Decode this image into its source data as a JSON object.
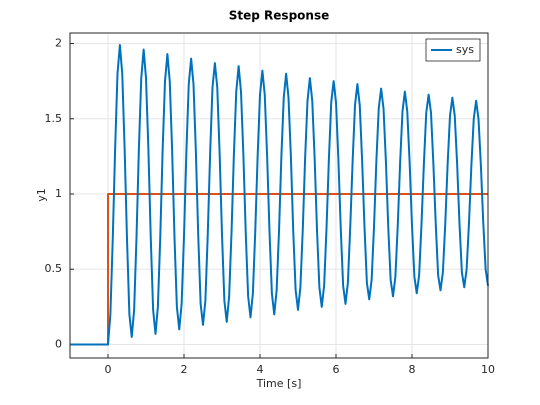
{
  "chart_data": {
    "type": "line",
    "title": "Step Response",
    "xlabel": "Time [s]",
    "ylabel": "y1",
    "xlim": [
      -1,
      10
    ],
    "xticks": [
      0,
      2,
      4,
      6,
      8,
      10
    ],
    "ylim": [
      -0.09,
      2.07
    ],
    "yticks": [
      0,
      0.5,
      1,
      1.5,
      2
    ],
    "grid": true,
    "legend": "upper right",
    "series": [
      {
        "name": "sys",
        "color": "#0072bd",
        "x": [
          -1,
          0,
          0.0625,
          0.125,
          0.1875,
          0.25,
          0.3125,
          0.375,
          0.4375,
          0.5,
          0.5625,
          0.625,
          0.6875,
          0.75,
          0.8125,
          0.875,
          0.9375,
          1,
          1.0625,
          1.125,
          1.1875,
          1.25,
          1.3125,
          1.375,
          1.4375,
          1.5,
          1.5625,
          1.625,
          1.6875,
          1.75,
          1.8125,
          1.875,
          1.9375,
          2,
          2.0625,
          2.125,
          2.1875,
          2.25,
          2.3125,
          2.375,
          2.4375,
          2.5,
          2.5625,
          2.625,
          2.6875,
          2.75,
          2.8125,
          2.875,
          2.9375,
          3,
          3.0625,
          3.125,
          3.1875,
          3.25,
          3.3125,
          3.375,
          3.4375,
          3.5,
          3.5625,
          3.625,
          3.6875,
          3.75,
          3.8125,
          3.875,
          3.9375,
          4,
          4.0625,
          4.125,
          4.1875,
          4.25,
          4.3125,
          4.375,
          4.4375,
          4.5,
          4.5625,
          4.625,
          4.6875,
          4.75,
          4.8125,
          4.875,
          4.9375,
          5,
          5.0625,
          5.125,
          5.1875,
          5.25,
          5.3125,
          5.375,
          5.4375,
          5.5,
          5.5625,
          5.625,
          5.6875,
          5.75,
          5.8125,
          5.875,
          5.9375,
          6,
          6.0625,
          6.125,
          6.1875,
          6.25,
          6.3125,
          6.375,
          6.4375,
          6.5,
          6.5625,
          6.625,
          6.6875,
          6.75,
          6.8125,
          6.875,
          6.9375,
          7,
          7.0625,
          7.125,
          7.1875,
          7.25,
          7.3125,
          7.375,
          7.4375,
          7.5,
          7.5625,
          7.625,
          7.6875,
          7.75,
          7.8125,
          7.875,
          7.9375,
          8,
          8.0625,
          8.125,
          8.1875,
          8.25,
          8.3125,
          8.375,
          8.4375,
          8.5,
          8.5625,
          8.625,
          8.6875,
          8.75,
          8.8125,
          8.875,
          8.9375,
          9,
          9.0625,
          9.125,
          9.1875,
          9.25,
          9.3125,
          9.375,
          9.4375,
          9.5,
          9.5625,
          9.625,
          9.6875,
          9.75,
          9.8125,
          9.875,
          9.9375,
          10
        ],
        "values": [
          0,
          0,
          0.2,
          0.7,
          1.3,
          1.8,
          1.99,
          1.8,
          1.3,
          0.7,
          0.2,
          0.05,
          0.23,
          0.71,
          1.3,
          1.77,
          1.96,
          1.77,
          1.3,
          0.71,
          0.23,
          0.07,
          0.25,
          0.71,
          1.29,
          1.75,
          1.93,
          1.75,
          1.29,
          0.71,
          0.25,
          0.1,
          0.27,
          0.72,
          1.28,
          1.73,
          1.9,
          1.73,
          1.28,
          0.72,
          0.27,
          0.13,
          0.29,
          0.73,
          1.27,
          1.71,
          1.87,
          1.71,
          1.27,
          0.73,
          0.29,
          0.15,
          0.32,
          0.74,
          1.26,
          1.68,
          1.85,
          1.68,
          1.26,
          0.74,
          0.32,
          0.18,
          0.34,
          0.75,
          1.25,
          1.66,
          1.82,
          1.66,
          1.25,
          0.75,
          0.34,
          0.2,
          0.36,
          0.75,
          1.25,
          1.64,
          1.8,
          1.64,
          1.25,
          0.75,
          0.36,
          0.23,
          0.38,
          0.76,
          1.24,
          1.62,
          1.77,
          1.62,
          1.24,
          0.76,
          0.38,
          0.25,
          0.39,
          0.77,
          1.23,
          1.61,
          1.75,
          1.61,
          1.23,
          0.77,
          0.39,
          0.27,
          0.41,
          0.78,
          1.22,
          1.59,
          1.73,
          1.59,
          1.22,
          0.78,
          0.41,
          0.3,
          0.43,
          0.78,
          1.22,
          1.57,
          1.7,
          1.57,
          1.22,
          0.78,
          0.43,
          0.32,
          0.45,
          0.79,
          1.21,
          1.55,
          1.68,
          1.55,
          1.21,
          0.79,
          0.45,
          0.34,
          0.46,
          0.8,
          1.2,
          1.54,
          1.66,
          1.54,
          1.2,
          0.8,
          0.46,
          0.36,
          0.48,
          0.8,
          1.2,
          1.52,
          1.64,
          1.52,
          1.2,
          0.8,
          0.48,
          0.38,
          0.5,
          0.81,
          1.19,
          1.5,
          1.62,
          1.5,
          1.19,
          0.81,
          0.5,
          0.39
        ]
      },
      {
        "color": "#d95319",
        "x": [
          -1,
          0,
          0,
          10
        ],
        "values": [
          0,
          0,
          1,
          1
        ]
      }
    ]
  }
}
